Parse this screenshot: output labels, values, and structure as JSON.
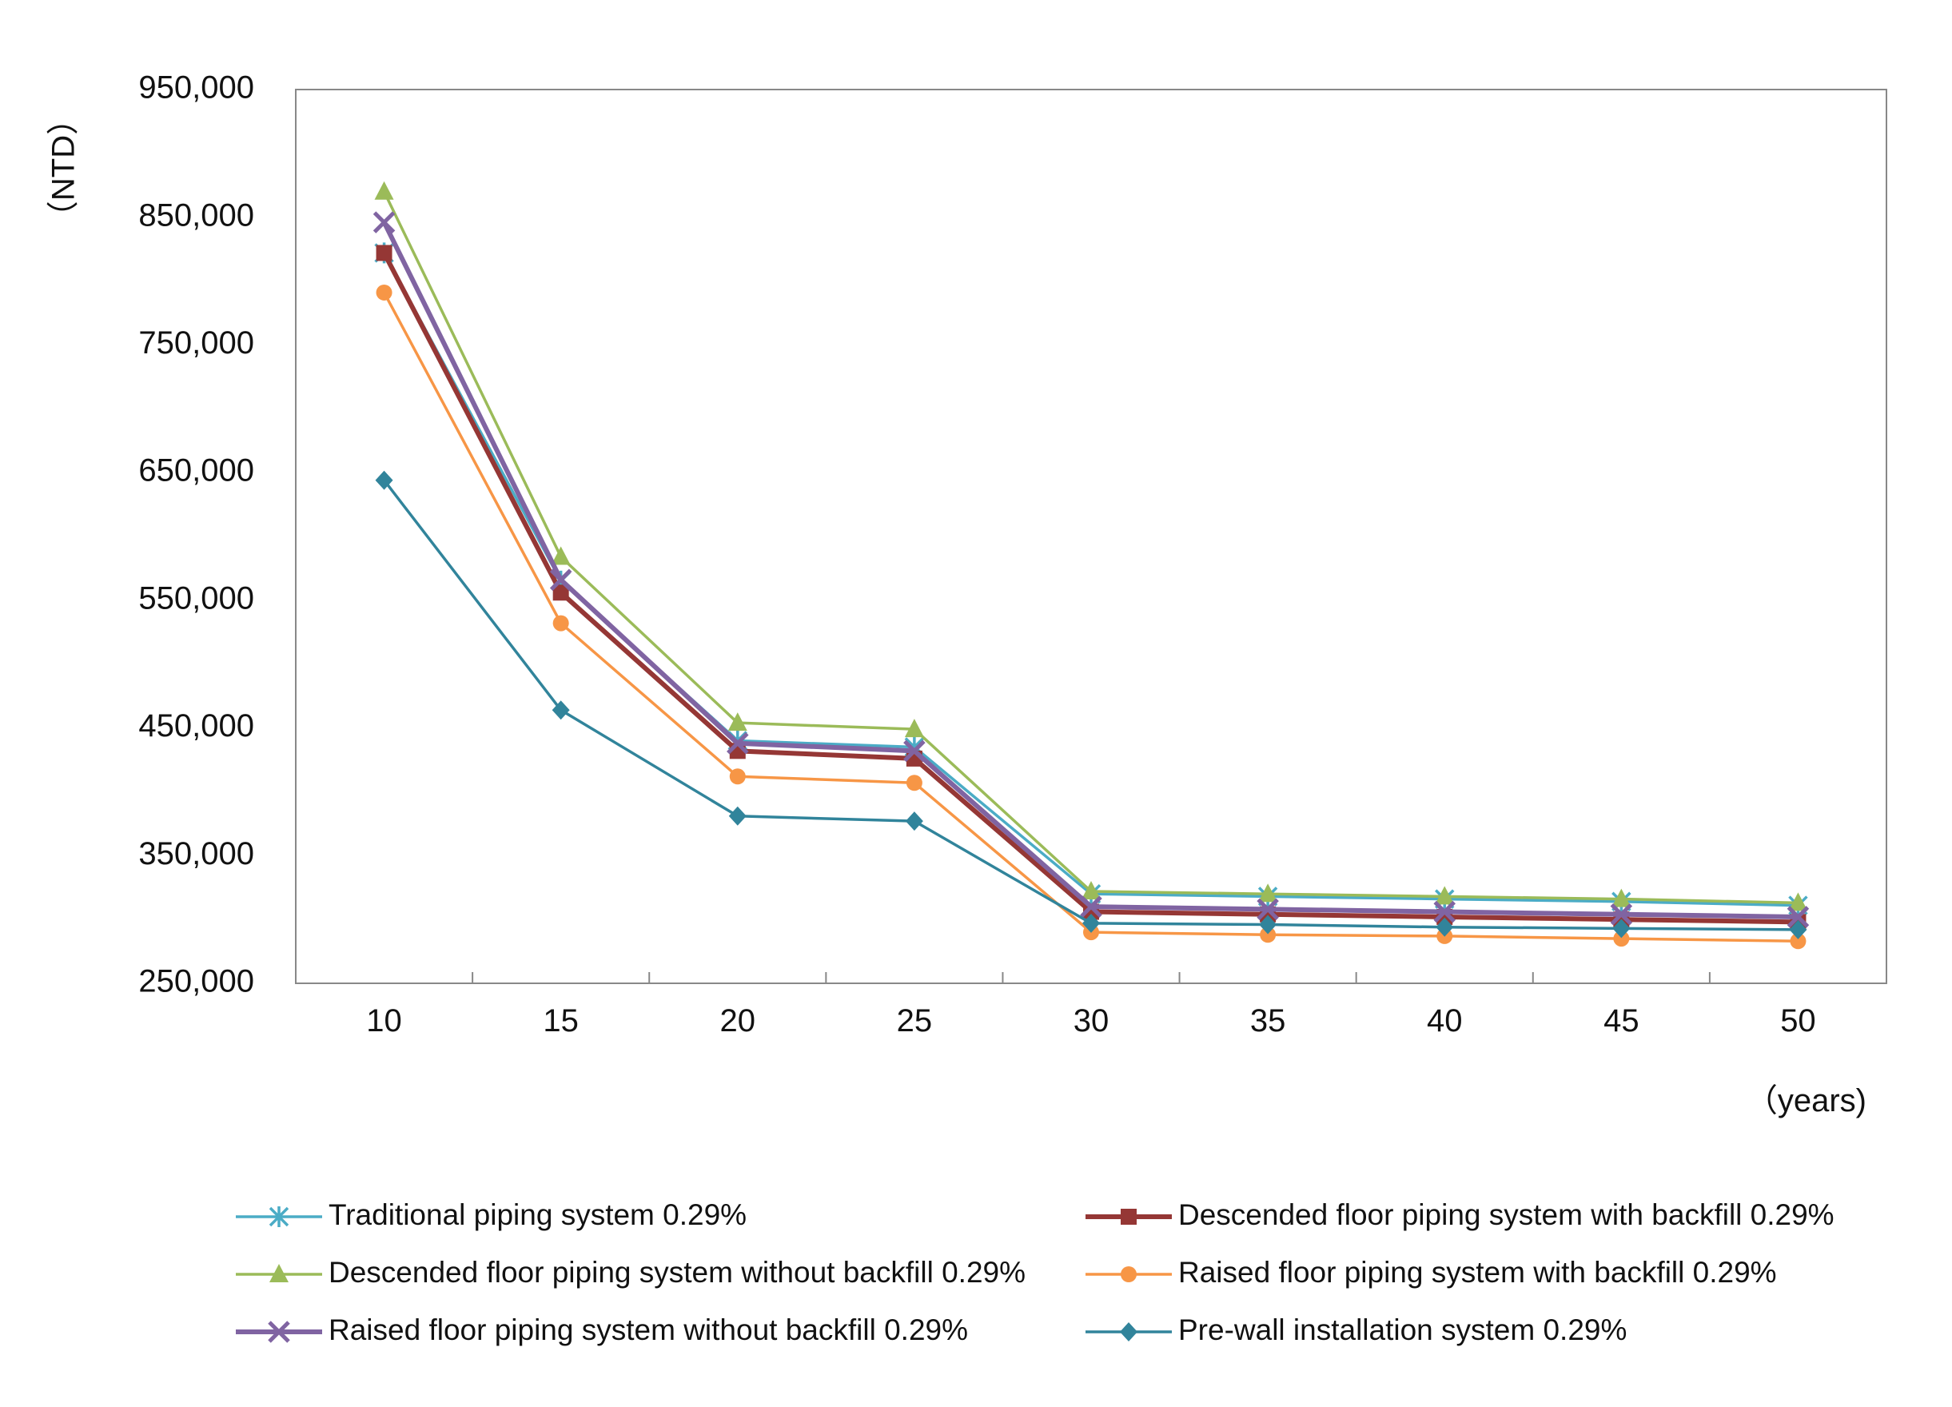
{
  "chart_data": {
    "type": "line",
    "title": "",
    "xlabel": "（years)",
    "ylabel": "（NTD）",
    "x": [
      10,
      15,
      20,
      25,
      30,
      35,
      40,
      45,
      50
    ],
    "y_ticks": [
      "950,000",
      "850,000",
      "750,000",
      "650,000",
      "550,000",
      "450,000",
      "350,000",
      "250,000"
    ],
    "ylim": [
      250000,
      950000
    ],
    "grid": false,
    "legend_position": "bottom",
    "series": [
      {
        "name": "Traditional piping system 0.29%",
        "color": "#4bacc6",
        "marker": "asterisk",
        "values": [
          822000,
          565000,
          440000,
          435000,
          320000,
          318000,
          316000,
          314000,
          311000
        ]
      },
      {
        "name": "Descended floor piping system with backfill 0.29%",
        "color": "#953735",
        "marker": "square",
        "values": [
          822000,
          556000,
          432000,
          426000,
          306000,
          304000,
          302000,
          300000,
          298000
        ]
      },
      {
        "name": "Descended floor piping system without backfill 0.29%",
        "color": "#9bbb59",
        "marker": "triangle",
        "values": [
          870000,
          584000,
          454000,
          449000,
          322000,
          320000,
          318000,
          316000,
          313000
        ]
      },
      {
        "name": "Raised floor piping system with backfill 0.29%",
        "color": "#f79646",
        "marker": "circle",
        "values": [
          791000,
          532000,
          412000,
          407000,
          290000,
          288000,
          287000,
          285000,
          283000
        ]
      },
      {
        "name": "Raised floor piping system without backfill 0.29%",
        "color": "#8064a2",
        "marker": "x",
        "values": [
          846000,
          566000,
          438000,
          432000,
          310000,
          308000,
          306000,
          304000,
          302000
        ]
      },
      {
        "name": "Pre-wall installation system 0.29%",
        "color": "#31849b",
        "marker": "diamond",
        "values": [
          644000,
          464000,
          381000,
          377000,
          297000,
          296000,
          294000,
          293000,
          292000
        ]
      }
    ]
  }
}
